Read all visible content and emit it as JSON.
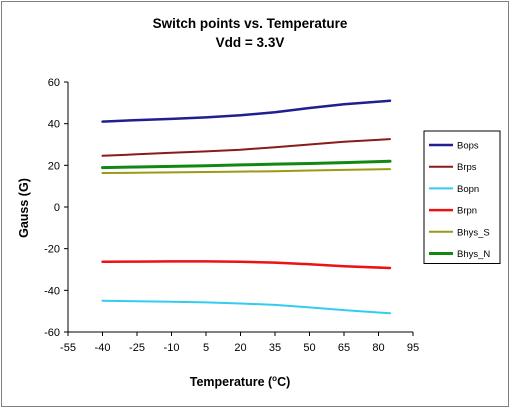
{
  "chart_data": {
    "type": "line",
    "title_line1": "Switch points  vs. Temperature",
    "title_line2": "Vdd = 3.3V",
    "xlabel_main": "Temperature (",
    "xlabel_sup": "o",
    "xlabel_end": "C)",
    "ylabel": "Gauss (G)",
    "xlim": [
      -55,
      95
    ],
    "ylim": [
      -60,
      60
    ],
    "x_ticks": [
      -55,
      -40,
      -25,
      -10,
      5,
      20,
      35,
      50,
      65,
      80,
      95
    ],
    "y_ticks": [
      -60,
      -40,
      -20,
      0,
      20,
      40,
      60
    ],
    "grid": false,
    "legend_position": "right",
    "x": [
      -40,
      -25,
      -10,
      5,
      20,
      35,
      50,
      65,
      85
    ],
    "series": [
      {
        "name": "Bops",
        "color": "#1f1f8f",
        "width": 2.5,
        "values": [
          41,
          41.7,
          42.3,
          43,
          44,
          45.5,
          47.5,
          49.3,
          51
        ]
      },
      {
        "name": "Brps",
        "color": "#8b1a1a",
        "width": 2,
        "values": [
          24.6,
          25.3,
          26,
          26.7,
          27.5,
          28.7,
          30,
          31.3,
          32.6
        ]
      },
      {
        "name": "Bopn",
        "color": "#33ccf0",
        "width": 2,
        "values": [
          -45,
          -45.2,
          -45.5,
          -45.8,
          -46.3,
          -47,
          -48.2,
          -49.5,
          -51
        ]
      },
      {
        "name": "Brpn",
        "color": "#ee1111",
        "width": 2.5,
        "values": [
          -26.3,
          -26.2,
          -26.1,
          -26.1,
          -26.3,
          -26.7,
          -27.5,
          -28.4,
          -29.3
        ]
      },
      {
        "name": "Bhys_S",
        "color": "#9a9a16",
        "width": 2,
        "values": [
          16.3,
          16.4,
          16.6,
          16.8,
          17,
          17.2,
          17.5,
          17.8,
          18.2
        ]
      },
      {
        "name": "Bhys_N",
        "color": "#118811",
        "width": 3,
        "values": [
          18.9,
          19.2,
          19.5,
          19.8,
          20.2,
          20.6,
          20.9,
          21.3,
          22
        ]
      }
    ]
  }
}
